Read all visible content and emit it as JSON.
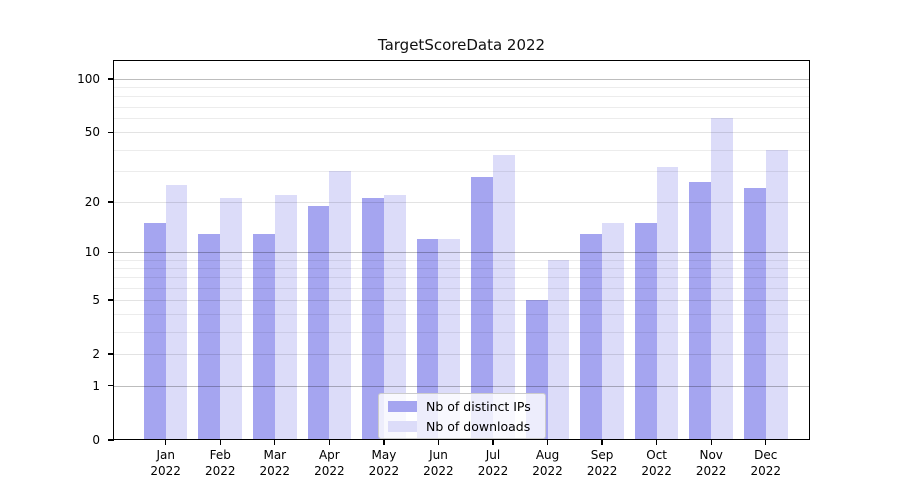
{
  "chart_data": {
    "type": "bar",
    "title": "TargetScoreData 2022",
    "categories": [
      "Jan 2022",
      "Feb 2022",
      "Mar 2022",
      "Apr 2022",
      "May 2022",
      "Jun 2022",
      "Jul 2022",
      "Aug 2022",
      "Sep 2022",
      "Oct 2022",
      "Nov 2022",
      "Dec 2022"
    ],
    "x_tick_months": [
      "Jan",
      "Feb",
      "Mar",
      "Apr",
      "May",
      "Jun",
      "Jul",
      "Aug",
      "Sep",
      "Oct",
      "Nov",
      "Dec"
    ],
    "x_tick_year": "2022",
    "series": [
      {
        "name": "Nb of distinct IPs",
        "color": "#a5a5f0",
        "values": [
          15,
          13,
          13,
          19,
          21,
          12,
          28,
          5,
          13,
          15,
          26,
          24
        ]
      },
      {
        "name": "Nb of downloads",
        "color": "#dcdcf9",
        "values": [
          25,
          21,
          22,
          30,
          22,
          12,
          37,
          9,
          15,
          32,
          60,
          40
        ]
      }
    ],
    "yscale": "log1p",
    "ylim": [
      0,
      130
    ],
    "y_ticks": [
      100,
      50,
      20,
      10,
      5,
      2,
      1,
      0
    ],
    "y_tick_labels": [
      "100",
      "50",
      "20",
      "10",
      "5",
      "2",
      "1",
      "0"
    ],
    "y_grid_major": [
      1,
      10,
      100
    ],
    "y_grid_labeled": [
      2,
      5,
      20,
      50
    ],
    "y_grid_minor": [
      3,
      4,
      6,
      7,
      8,
      9,
      30,
      40,
      60,
      70,
      80,
      90
    ],
    "grid": "on",
    "legend_location": "lower center"
  }
}
